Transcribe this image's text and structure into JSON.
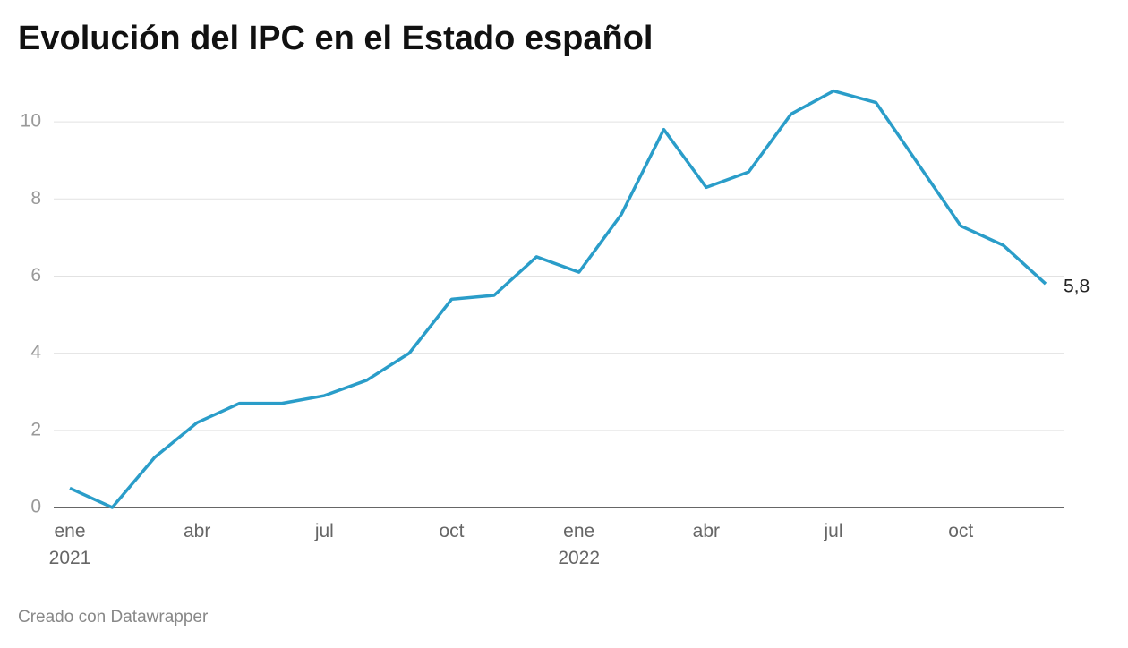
{
  "chart_data": {
    "type": "line",
    "title": "Evolución del IPC en el Estado español",
    "credit": "Creado con Datawrapper",
    "categories": [
      "ene\n2021",
      null,
      null,
      "abr",
      null,
      null,
      "jul",
      null,
      null,
      "oct",
      null,
      null,
      "ene\n2022",
      null,
      null,
      "abr",
      null,
      null,
      "jul",
      null,
      null,
      "oct",
      null,
      null
    ],
    "series": [
      {
        "name": "IPC",
        "color": "#2a9dc9",
        "values": [
          0.5,
          0.0,
          1.3,
          2.2,
          2.7,
          2.7,
          2.9,
          3.3,
          4.0,
          5.4,
          5.5,
          6.5,
          6.1,
          7.6,
          9.8,
          8.3,
          8.7,
          10.2,
          10.8,
          10.5,
          8.9,
          7.3,
          6.8,
          5.8
        ],
        "value_labels": [
          null,
          null,
          null,
          null,
          null,
          null,
          null,
          null,
          null,
          null,
          null,
          null,
          null,
          null,
          null,
          null,
          null,
          null,
          null,
          null,
          null,
          null,
          null,
          "5,8"
        ]
      }
    ],
    "ylim": [
      0,
      11
    ],
    "yticks": [
      0,
      2,
      4,
      6,
      8,
      10
    ],
    "grid": true
  }
}
